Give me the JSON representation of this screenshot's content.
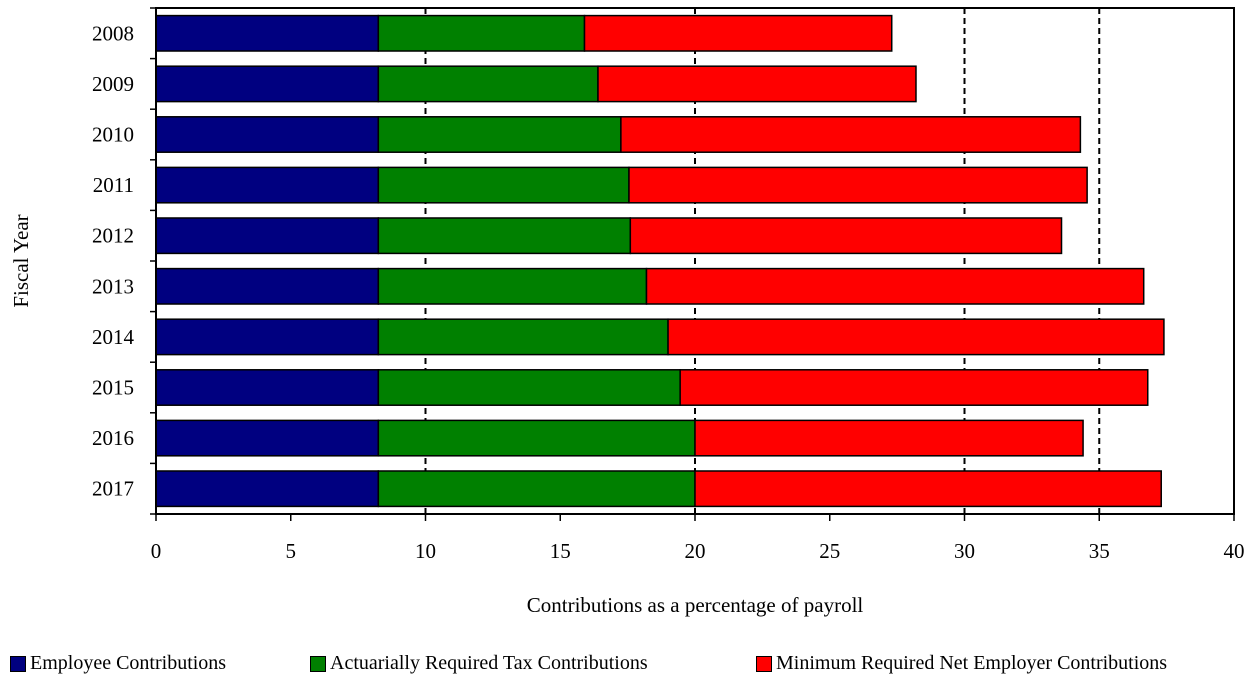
{
  "chart_data": {
    "type": "bar",
    "orientation": "horizontal",
    "stacked": true,
    "title": "",
    "xlabel": "Contributions as a percentage of payroll",
    "ylabel": "Fiscal Year",
    "xlim": [
      0,
      40
    ],
    "xticks": [
      0,
      5,
      10,
      15,
      20,
      25,
      30,
      35,
      40
    ],
    "categories": [
      "2008",
      "2009",
      "2010",
      "2011",
      "2012",
      "2013",
      "2014",
      "2015",
      "2016",
      "2017"
    ],
    "grid": "dashed vertical at 10, 20, 30, 35",
    "legend_position": "bottom",
    "series": [
      {
        "name": "Employee Contributions",
        "color": "#000080",
        "values": [
          8.25,
          8.25,
          8.25,
          8.25,
          8.25,
          8.25,
          8.25,
          8.25,
          8.25,
          8.25
        ]
      },
      {
        "name": "Actuarially Required Tax Contributions",
        "color": "#008000",
        "values": [
          7.65,
          8.15,
          9.0,
          9.3,
          9.35,
          9.95,
          10.75,
          11.2,
          11.75,
          11.75
        ]
      },
      {
        "name": "Minimum Required Net Employer Contributions",
        "color": "#ff0000",
        "values": [
          11.4,
          11.8,
          17.05,
          17.0,
          16.0,
          18.45,
          18.4,
          17.35,
          14.4,
          17.3
        ]
      }
    ]
  }
}
